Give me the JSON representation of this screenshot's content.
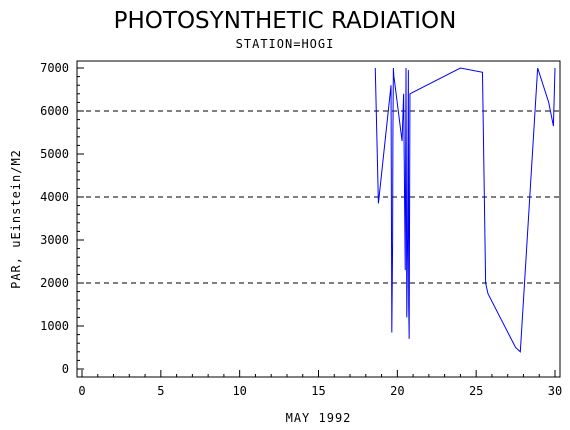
{
  "chart_data": {
    "type": "line",
    "title": "PHOTOSYNTHETIC RADIATION",
    "subtitle": "STATION=HOGI",
    "xlabel": "MAY 1992",
    "ylabel": "PAR, uEinstein/M2",
    "xlim": [
      0,
      30
    ],
    "ylim": [
      0,
      7000
    ],
    "x_ticks": [
      0,
      5,
      10,
      15,
      20,
      25,
      30
    ],
    "x_minor_step": 1,
    "y_ticks": [
      0,
      1000,
      2000,
      3000,
      4000,
      5000,
      6000,
      7000
    ],
    "y_minor_step": 200,
    "reference_lines": [
      2000,
      4000,
      6000
    ],
    "grid": false,
    "line_color": "#0000ff",
    "series": [
      {
        "x": [
          18.6,
          18.8,
          19.6,
          19.65,
          19.7,
          19.72,
          19.75,
          19.78,
          19.82,
          20.3,
          20.4,
          20.5,
          20.55,
          20.6,
          20.65,
          20.7,
          20.72,
          20.75,
          20.8,
          24.0,
          25.4,
          25.6,
          25.75,
          27.5,
          27.8,
          28.9,
          29.6,
          29.9,
          30.0
        ],
        "y": [
          7000,
          3850,
          6600,
          850,
          2900,
          5500,
          7000,
          6800,
          6700,
          5300,
          6400,
          2300,
          7000,
          1200,
          3000,
          6950,
          1500,
          700,
          6400,
          7000,
          6900,
          2000,
          1750,
          500,
          400,
          7000,
          6200,
          5650,
          7000
        ]
      }
    ]
  }
}
